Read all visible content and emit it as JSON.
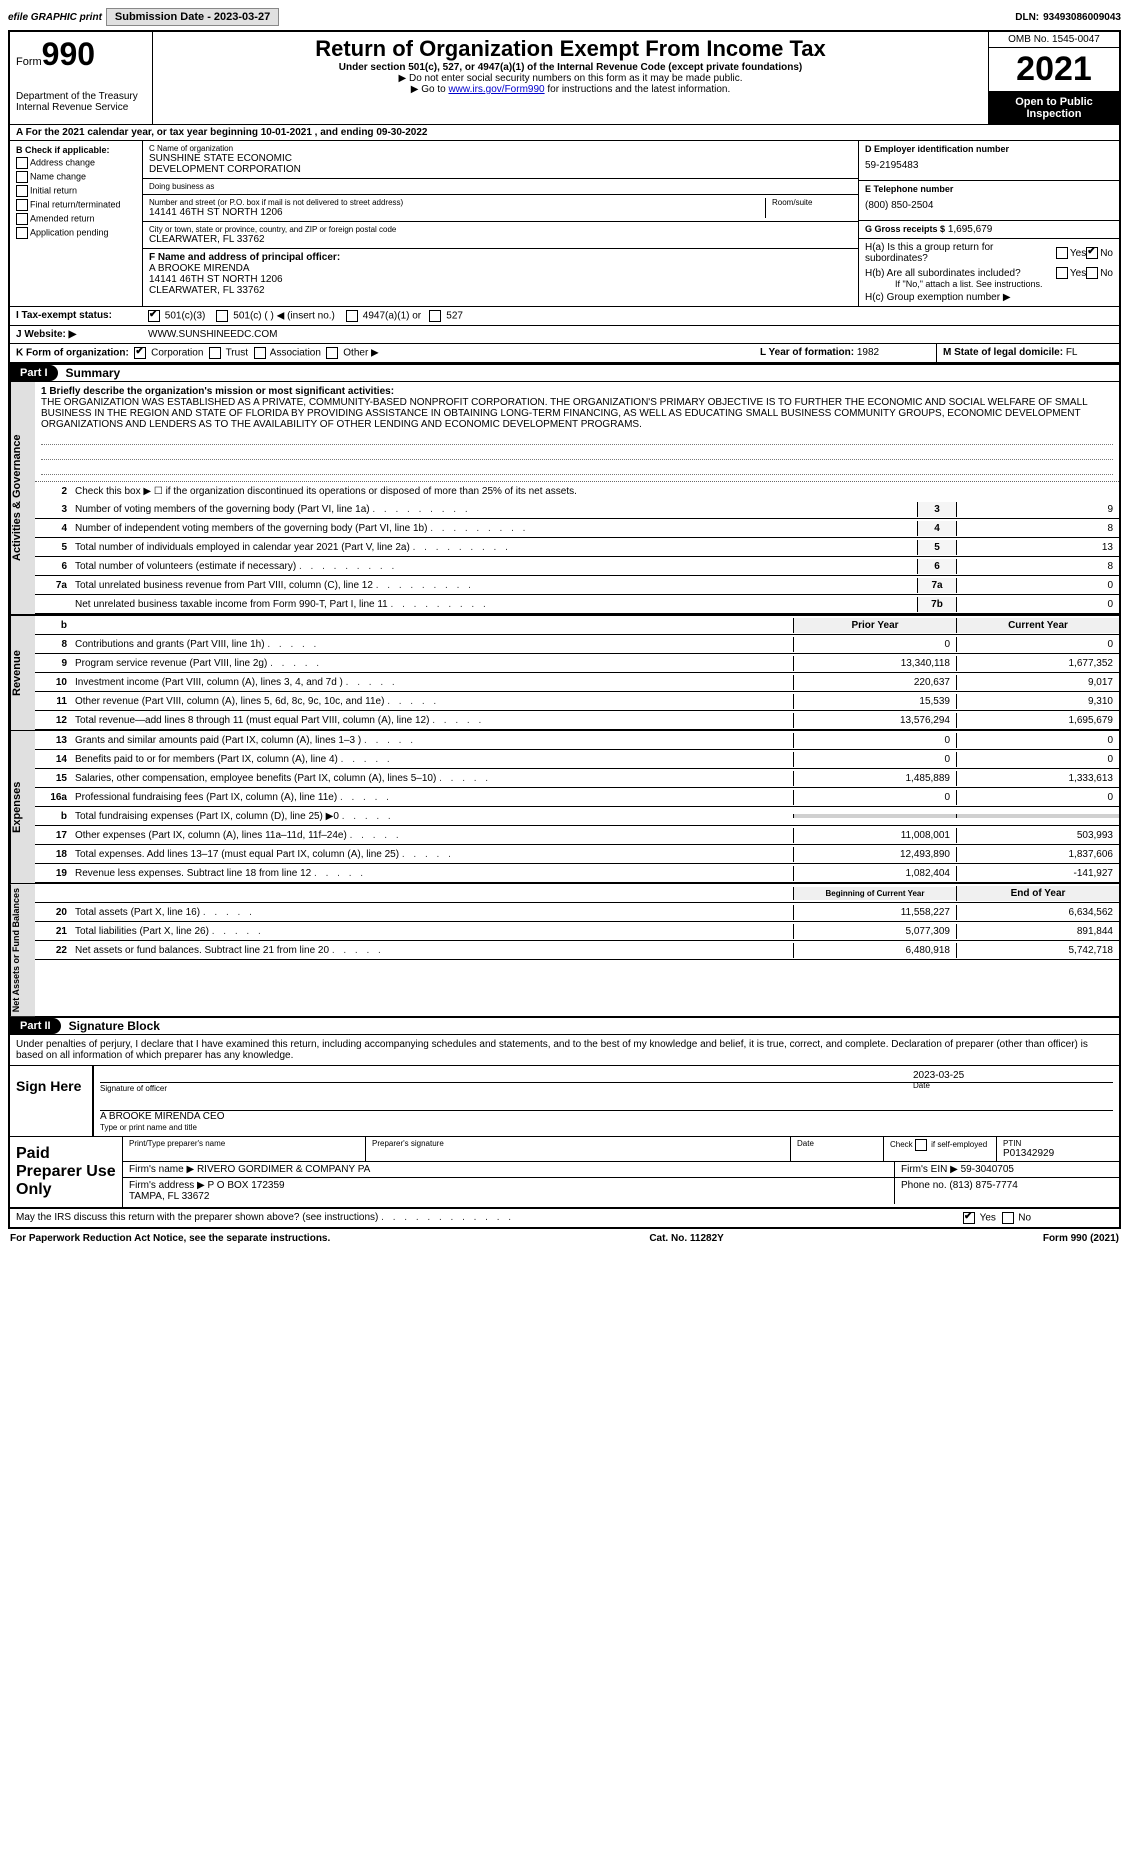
{
  "topbar": {
    "efile": "efile GRAPHIC print",
    "btn1": "Submission Date - 2023-03-27",
    "dln_label": "DLN:",
    "dln": "93493086009043"
  },
  "header": {
    "form_word": "Form",
    "form_num": "990",
    "dept": "Department of the Treasury\nInternal Revenue Service",
    "title": "Return of Organization Exempt From Income Tax",
    "subtitle": "Under section 501(c), 527, or 4947(a)(1) of the Internal Revenue Code (except private foundations)",
    "warn": "▶ Do not enter social security numbers on this form as it may be made public.",
    "goto_pre": "▶ Go to ",
    "goto_link": "www.irs.gov/Form990",
    "goto_post": " for instructions and the latest information.",
    "omb": "OMB No. 1545-0047",
    "year": "2021",
    "inspection": "Open to Public Inspection"
  },
  "rowA": "A For the 2021 calendar year, or tax year beginning 10-01-2021   , and ending 09-30-2022",
  "colB": {
    "title": "B Check if applicable:",
    "items": [
      "Address change",
      "Name change",
      "Initial return",
      "Final return/terminated",
      "Amended return",
      "Application pending"
    ]
  },
  "colC": {
    "name_lbl": "C Name of organization",
    "name": "SUNSHINE STATE ECONOMIC\nDEVELOPMENT CORPORATION",
    "dba_lbl": "Doing business as",
    "dba": "",
    "addr_lbl": "Number and street (or P.O. box if mail is not delivered to street address)",
    "addr": "14141 46TH ST NORTH 1206",
    "room_lbl": "Room/suite",
    "city_lbl": "City or town, state or province, country, and ZIP or foreign postal code",
    "city": "CLEARWATER, FL  33762",
    "officer_lbl": "F Name and address of principal officer:",
    "officer": "A BROOKE MIRENDA\n14141 46TH ST NORTH 1206\nCLEARWATER, FL  33762"
  },
  "colD": {
    "ein_lbl": "D Employer identification number",
    "ein": "59-2195483",
    "phone_lbl": "E Telephone number",
    "phone": "(800) 850-2504",
    "gross_lbl": "G Gross receipts $",
    "gross": "1,695,679"
  },
  "h": {
    "a": "H(a)  Is this a group return for subordinates?",
    "b": "H(b)  Are all subordinates included?",
    "b_note": "If \"No,\" attach a list. See instructions.",
    "c": "H(c)  Group exemption number ▶",
    "yes": "Yes",
    "no": "No"
  },
  "taxStatus": {
    "label": "I   Tax-exempt status:",
    "opt1": "501(c)(3)",
    "opt2": "501(c) (  ) ◀ (insert no.)",
    "opt3": "4947(a)(1) or",
    "opt4": "527"
  },
  "website": {
    "label": "J   Website: ▶",
    "value": "WWW.SUNSHINEEDC.COM"
  },
  "formOrg": {
    "label": "K Form of organization:",
    "opts": [
      "Corporation",
      "Trust",
      "Association",
      "Other ▶"
    ],
    "yof_lbl": "L Year of formation:",
    "yof": "1982",
    "state_lbl": "M State of legal domicile:",
    "state": "FL"
  },
  "parts": {
    "p1": "Part I",
    "p1_title": "Summary",
    "p2": "Part II",
    "p2_title": "Signature Block"
  },
  "vtabs": {
    "ag": "Activities & Governance",
    "rev": "Revenue",
    "exp": "Expenses",
    "net": "Net Assets or Fund Balances"
  },
  "summary": {
    "q1_label": "1  Briefly describe the organization's mission or most significant activities:",
    "q1": "THE ORGANIZATION WAS ESTABLISHED AS A PRIVATE, COMMUNITY-BASED NONPROFIT CORPORATION. THE ORGANIZATION'S PRIMARY OBJECTIVE IS TO FURTHER THE ECONOMIC AND SOCIAL WELFARE OF SMALL BUSINESS IN THE REGION AND STATE OF FLORIDA BY PROVIDING ASSISTANCE IN OBTAINING LONG-TERM FINANCING, AS WELL AS EDUCATING SMALL BUSINESS COMMUNITY GROUPS, ECONOMIC DEVELOPMENT ORGANIZATIONS AND LENDERS AS TO THE AVAILABILITY OF OTHER LENDING AND ECONOMIC DEVELOPMENT PROGRAMS.",
    "q2": "Check this box ▶ ☐  if the organization discontinued its operations or disposed of more than 25% of its net assets.",
    "lines_ag": [
      {
        "n": "3",
        "t": "Number of voting members of the governing body (Part VI, line 1a)",
        "c": "3",
        "v": "9"
      },
      {
        "n": "4",
        "t": "Number of independent voting members of the governing body (Part VI, line 1b)",
        "c": "4",
        "v": "8"
      },
      {
        "n": "5",
        "t": "Total number of individuals employed in calendar year 2021 (Part V, line 2a)",
        "c": "5",
        "v": "13"
      },
      {
        "n": "6",
        "t": "Total number of volunteers (estimate if necessary)",
        "c": "6",
        "v": "8"
      },
      {
        "n": "7a",
        "t": "Total unrelated business revenue from Part VIII, column (C), line 12",
        "c": "7a",
        "v": "0"
      },
      {
        "n": "",
        "t": "Net unrelated business taxable income from Form 990-T, Part I, line 11",
        "c": "7b",
        "v": "0"
      }
    ],
    "col_hdrs": {
      "prior": "Prior Year",
      "current": "Current Year",
      "boy": "Beginning of Current Year",
      "eoy": "End of Year"
    },
    "lines_rev": [
      {
        "n": "8",
        "t": "Contributions and grants (Part VIII, line 1h)",
        "p": "0",
        "c": "0"
      },
      {
        "n": "9",
        "t": "Program service revenue (Part VIII, line 2g)",
        "p": "13,340,118",
        "c": "1,677,352"
      },
      {
        "n": "10",
        "t": "Investment income (Part VIII, column (A), lines 3, 4, and 7d )",
        "p": "220,637",
        "c": "9,017"
      },
      {
        "n": "11",
        "t": "Other revenue (Part VIII, column (A), lines 5, 6d, 8c, 9c, 10c, and 11e)",
        "p": "15,539",
        "c": "9,310"
      },
      {
        "n": "12",
        "t": "Total revenue—add lines 8 through 11 (must equal Part VIII, column (A), line 12)",
        "p": "13,576,294",
        "c": "1,695,679"
      }
    ],
    "lines_exp": [
      {
        "n": "13",
        "t": "Grants and similar amounts paid (Part IX, column (A), lines 1–3 )",
        "p": "0",
        "c": "0"
      },
      {
        "n": "14",
        "t": "Benefits paid to or for members (Part IX, column (A), line 4)",
        "p": "0",
        "c": "0"
      },
      {
        "n": "15",
        "t": "Salaries, other compensation, employee benefits (Part IX, column (A), lines 5–10)",
        "p": "1,485,889",
        "c": "1,333,613"
      },
      {
        "n": "16a",
        "t": "Professional fundraising fees (Part IX, column (A), line 11e)",
        "p": "0",
        "c": "0"
      },
      {
        "n": "b",
        "t": "Total fundraising expenses (Part IX, column (D), line 25) ▶0",
        "p": "",
        "c": "",
        "grey": true
      },
      {
        "n": "17",
        "t": "Other expenses (Part IX, column (A), lines 11a–11d, 11f–24e)",
        "p": "11,008,001",
        "c": "503,993"
      },
      {
        "n": "18",
        "t": "Total expenses. Add lines 13–17 (must equal Part IX, column (A), line 25)",
        "p": "12,493,890",
        "c": "1,837,606"
      },
      {
        "n": "19",
        "t": "Revenue less expenses. Subtract line 18 from line 12",
        "p": "1,082,404",
        "c": "-141,927"
      }
    ],
    "lines_net": [
      {
        "n": "20",
        "t": "Total assets (Part X, line 16)",
        "p": "11,558,227",
        "c": "6,634,562"
      },
      {
        "n": "21",
        "t": "Total liabilities (Part X, line 26)",
        "p": "5,077,309",
        "c": "891,844"
      },
      {
        "n": "22",
        "t": "Net assets or fund balances. Subtract line 21 from line 20",
        "p": "6,480,918",
        "c": "5,742,718"
      }
    ]
  },
  "sig": {
    "penalty": "Under penalties of perjury, I declare that I have examined this return, including accompanying schedules and statements, and to the best of my knowledge and belief, it is true, correct, and complete. Declaration of preparer (other than officer) is based on all information of which preparer has any knowledge.",
    "sign_here": "Sign Here",
    "sig_lbl": "Signature of officer",
    "date_lbl": "Date",
    "date": "2023-03-25",
    "name": "A BROOKE MIRENDA  CEO",
    "name_lbl": "Type or print name and title"
  },
  "prep": {
    "title": "Paid Preparer Use Only",
    "h1": "Print/Type preparer's name",
    "h2": "Preparer's signature",
    "h3": "Date",
    "h4_pre": "Check ",
    "h4_post": " if self-employed",
    "h5": "PTIN",
    "ptin": "P01342929",
    "firm_lbl": "Firm's name    ▶",
    "firm": "RIVERO GORDIMER & COMPANY PA",
    "ein_lbl": "Firm's EIN ▶",
    "ein": "59-3040705",
    "addr_lbl": "Firm's address ▶",
    "addr": "P O BOX 172359\nTAMPA, FL  33672",
    "phone_lbl": "Phone no.",
    "phone": "(813) 875-7774",
    "discuss": "May the IRS discuss this return with the preparer shown above? (see instructions)"
  },
  "footer": {
    "left": "For Paperwork Reduction Act Notice, see the separate instructions.",
    "mid": "Cat. No. 11282Y",
    "right": "Form 990 (2021)"
  }
}
